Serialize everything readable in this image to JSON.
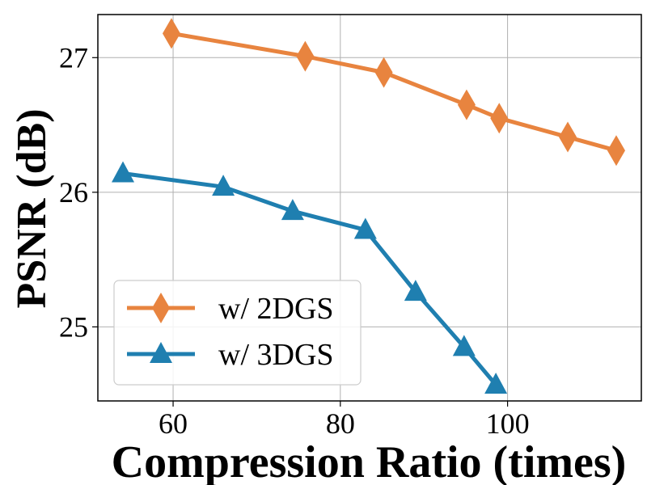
{
  "chart_data": {
    "type": "line",
    "title": "",
    "xlabel": "Compression Ratio (times)",
    "ylabel": "PSNR (dB)",
    "xlim": [
      51,
      116
    ],
    "ylim": [
      24.45,
      27.32
    ],
    "xticks": [
      60,
      80,
      100
    ],
    "yticks": [
      25,
      26,
      27
    ],
    "grid": true,
    "legend_position": "lower-left",
    "series": [
      {
        "name": "w/ 2DGS",
        "marker": "diamond",
        "color": "#E8843F",
        "x": [
          59.8,
          75.8,
          85.2,
          95.1,
          99.0,
          107.2,
          113.0
        ],
        "y": [
          27.18,
          27.01,
          26.89,
          26.65,
          26.55,
          26.41,
          26.31
        ]
      },
      {
        "name": "w/ 3DGS",
        "marker": "triangle",
        "color": "#1F7FB0",
        "x": [
          54.0,
          66.0,
          74.3,
          83.0,
          89.0,
          94.8,
          98.6
        ],
        "y": [
          26.14,
          26.04,
          25.86,
          25.72,
          25.26,
          24.85,
          24.57
        ]
      }
    ]
  }
}
